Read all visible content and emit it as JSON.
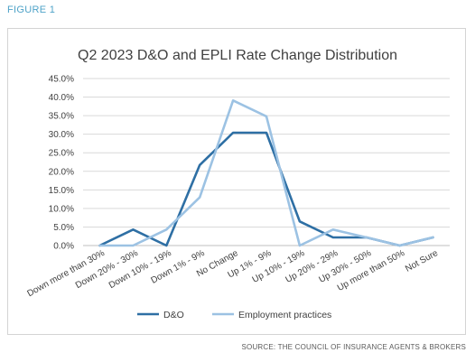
{
  "figure_label": "FIGURE 1",
  "source": "SOURCE: THE COUNCIL OF INSURANCE AGENTS & BROKERS",
  "chart_data": {
    "type": "line",
    "title": "Q2 2023 D&O and EPLI Rate Change Distribution",
    "categories": [
      "Down more than 30%",
      "Down 20% - 30%",
      "Down 10% - 19%",
      "Down 1% - 9%",
      "No Change",
      "Up 1% - 9%",
      "Up 10% - 19%",
      "Up 20% - 29%",
      "Up 30% - 50%",
      "Up more than 50%",
      "Not Sure"
    ],
    "series": [
      {
        "name": "D&O",
        "color": "#2e6fa4",
        "values": [
          0.0,
          4.3,
          0.0,
          21.7,
          30.4,
          30.4,
          6.5,
          2.2,
          2.2,
          0.0,
          2.2
        ]
      },
      {
        "name": "Employment practices",
        "color": "#9cc2e3",
        "values": [
          0.0,
          0.0,
          4.3,
          13.0,
          39.1,
          34.8,
          0.0,
          4.3,
          2.2,
          0.0,
          2.2
        ]
      }
    ],
    "yticks": [
      "0.0%",
      "5.0%",
      "10.0%",
      "15.0%",
      "20.0%",
      "25.0%",
      "30.0%",
      "35.0%",
      "40.0%",
      "45.0%"
    ],
    "ylim": [
      0,
      45
    ],
    "grid": true,
    "legend_position": "bottom"
  }
}
